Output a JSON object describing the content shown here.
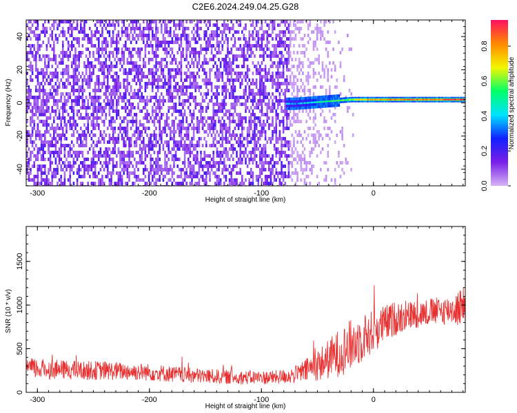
{
  "chart_data": [
    {
      "type": "heatmap",
      "title": "C2E6.2024.249.04.25.G28",
      "xlabel": "Height of straight line (km)",
      "ylabel": "Frequency (Hz)",
      "xlim": [
        -310,
        82
      ],
      "ylim": [
        -50,
        50
      ],
      "x_ticks": [
        -300,
        -200,
        -100,
        0
      ],
      "y_ticks": [
        -40,
        -20,
        0,
        20,
        40
      ],
      "colorbar": {
        "label": "Normalized spectral amplitude",
        "range": [
          0,
          0.95
        ],
        "ticks": [
          0.0,
          0.2,
          0.4,
          0.6,
          0.8
        ],
        "colormap": [
          "#d6b4f5",
          "#7a1fe8",
          "#1020ff",
          "#00e5ff",
          "#00ff66",
          "#f5f500",
          "#ff8800",
          "#ff1060"
        ]
      },
      "noise_region": {
        "x_range": [
          -310,
          -75
        ],
        "freq_range": [
          -50,
          50
        ],
        "level": 0.05
      },
      "fade_region": {
        "x_range": [
          -75,
          -15
        ],
        "level": 0.02
      },
      "signal_trace": {
        "x": [
          -78,
          -70,
          -60,
          -50,
          -40,
          -30,
          -20,
          -10,
          0,
          20,
          40,
          60,
          82
        ],
        "freq": [
          -0.5,
          -0.5,
          0,
          0.5,
          1,
          1.5,
          2,
          2,
          2,
          2,
          2,
          2,
          2
        ],
        "amplitude": [
          0.3,
          0.3,
          0.35,
          0.45,
          0.5,
          0.5,
          0.6,
          0.7,
          0.75,
          0.8,
          0.8,
          0.8,
          0.9
        ]
      }
    },
    {
      "type": "line",
      "xlabel": "Height of straight line (km)",
      "ylabel": "SNR (10 * v/v)",
      "xlim": [
        -310,
        82
      ],
      "ylim": [
        0,
        1900
      ],
      "x_ticks": [
        -300,
        -200,
        -100,
        0
      ],
      "y_ticks": [
        0,
        500,
        1000,
        1500
      ],
      "series": [
        {
          "color": "#e83232",
          "x": [
            -310,
            -300,
            -280,
            -260,
            -240,
            -220,
            -200,
            -180,
            -160,
            -140,
            -120,
            -100,
            -90,
            -80,
            -70,
            -60,
            -50,
            -40,
            -30,
            -20,
            -10,
            0,
            10,
            20,
            30,
            40,
            50,
            60,
            70,
            82
          ],
          "y": [
            280,
            270,
            260,
            250,
            250,
            240,
            230,
            210,
            190,
            180,
            170,
            170,
            170,
            180,
            200,
            250,
            310,
            380,
            460,
            540,
            620,
            700,
            780,
            850,
            880,
            900,
            920,
            930,
            950,
            980
          ],
          "noise": [
            120,
            120,
            110,
            110,
            110,
            100,
            100,
            95,
            90,
            85,
            80,
            80,
            80,
            85,
            100,
            140,
            180,
            230,
            280,
            300,
            280,
            250,
            220,
            200,
            170,
            160,
            160,
            160,
            170,
            260
          ]
        }
      ]
    }
  ]
}
